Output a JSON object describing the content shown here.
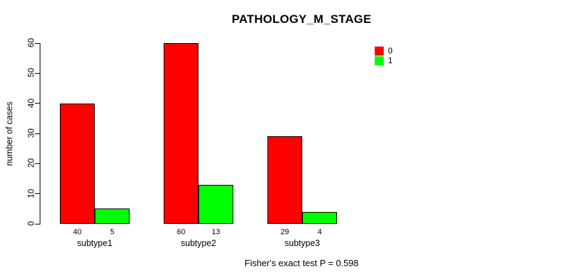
{
  "title": "PATHOLOGY_M_STAGE",
  "footer": "Fisher's exact test P = 0.598",
  "y_axis": {
    "label": "number of cases",
    "ticks": [
      0,
      10,
      20,
      30,
      40,
      50,
      60
    ]
  },
  "legend": {
    "items": [
      {
        "label": "0",
        "color": "#ff0000"
      },
      {
        "label": "1",
        "color": "#00ff00"
      }
    ]
  },
  "chart_data": {
    "type": "bar",
    "title": "PATHOLOGY_M_STAGE",
    "categories": [
      "subtype1",
      "subtype2",
      "subtype3"
    ],
    "series": [
      {
        "name": "0",
        "color": "#ff0000",
        "values": [
          40,
          60,
          29
        ]
      },
      {
        "name": "1",
        "color": "#00ff00",
        "values": [
          5,
          13,
          4
        ]
      }
    ],
    "xlabel": "",
    "ylabel": "number of cases",
    "ylim": [
      0,
      60
    ],
    "grid": false,
    "legend_position": "top-right",
    "bar_value_labels_shown": true,
    "annotation": "Fisher's exact test P = 0.598"
  }
}
